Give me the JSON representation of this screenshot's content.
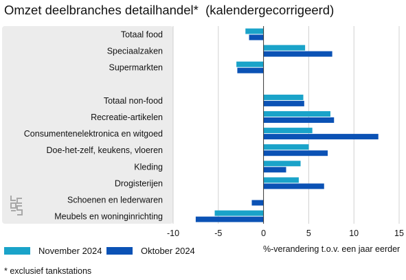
{
  "title": "Omzet deelbranches detailhandel*  (kalendergecorrigeerd)",
  "footnote": "* exclusief tankstations",
  "colors": {
    "series1": "#1aa3c9",
    "series2": "#0b52b5",
    "panel": "#ececec",
    "grid": "#d0d0d0"
  },
  "logo": "cbs-logo",
  "chart_data": {
    "type": "bar",
    "orientation": "horizontal",
    "categories": [
      "Totaal food",
      "Speciaalzaken",
      "Supermarkten",
      "",
      "Totaal non-food",
      "Recreatie-artikelen",
      "Consumentenelektronica en witgoed",
      "Doe-het-zelf, keukens, vloeren",
      "Kleding",
      "Drogisterijen",
      "Schoenen en lederwaren",
      "Meubels en woninginrichting"
    ],
    "series": [
      {
        "name": "November 2024",
        "values": [
          -2.0,
          4.6,
          -3.0,
          null,
          4.4,
          7.4,
          5.4,
          5.0,
          4.1,
          3.9,
          0.0,
          -5.4
        ]
      },
      {
        "name": "Oktober 2024",
        "values": [
          -1.6,
          7.6,
          -2.9,
          null,
          4.5,
          7.8,
          12.7,
          7.1,
          2.5,
          6.7,
          -1.3,
          -7.5
        ]
      }
    ],
    "xlabel": "%-verandering t.o.v. een jaar eerder",
    "xlim": [
      -10,
      15
    ],
    "xticks": [
      -10,
      -5,
      0,
      5,
      10,
      15
    ],
    "grid": true,
    "legend": "bottom-left"
  }
}
